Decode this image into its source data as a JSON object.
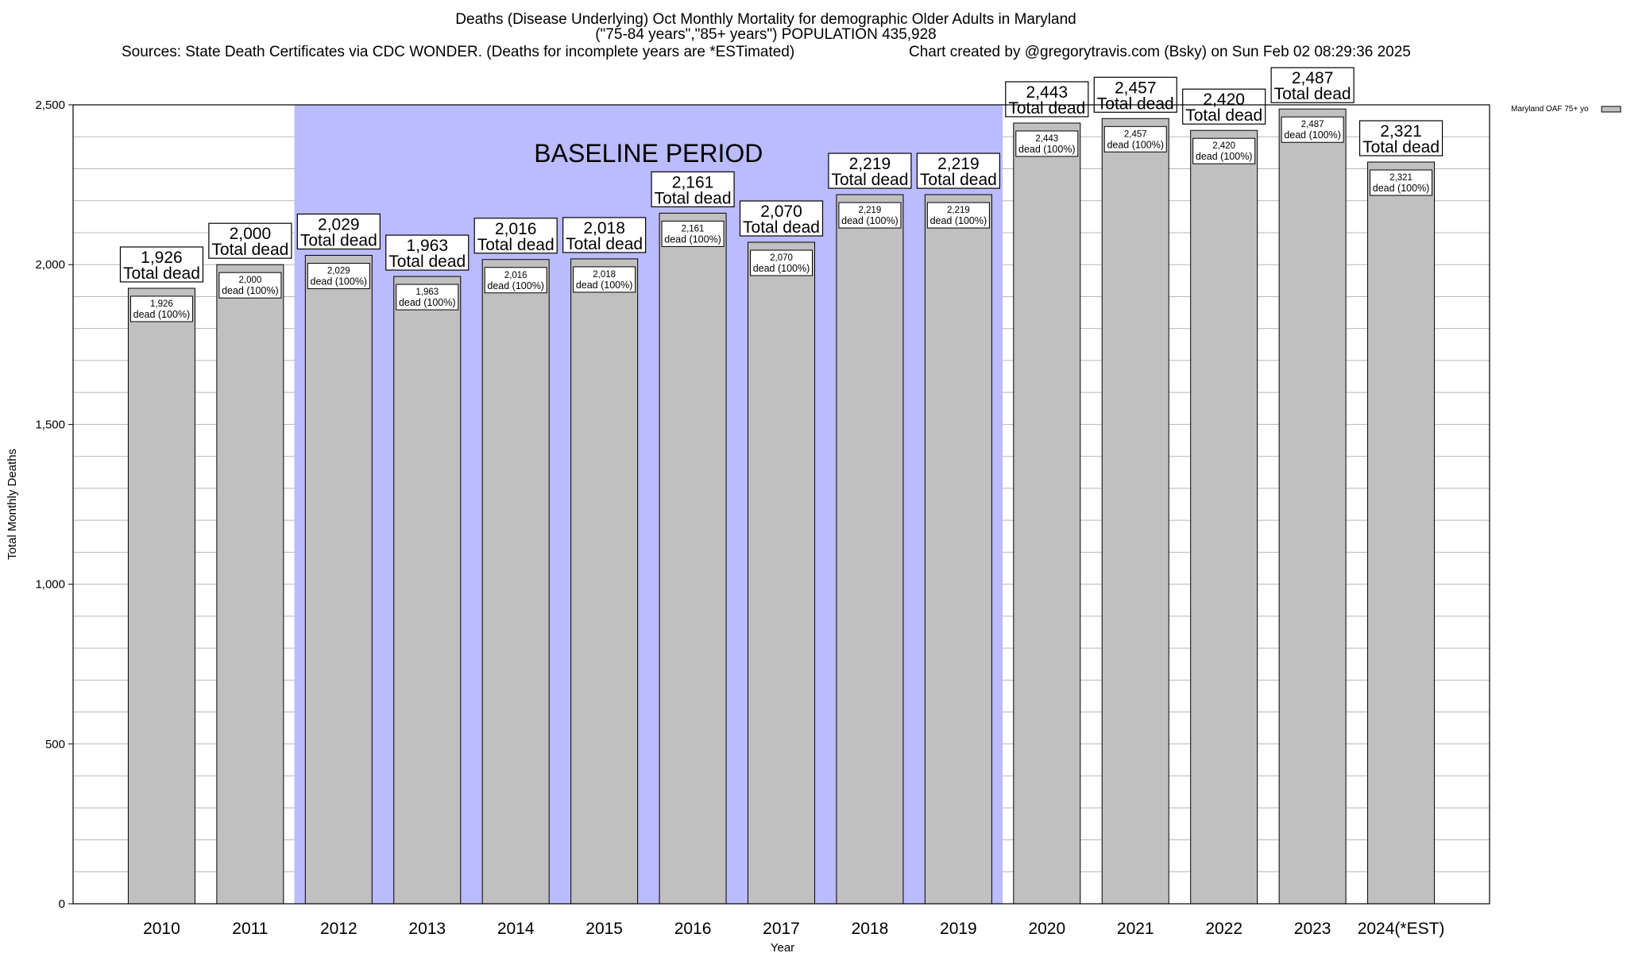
{
  "header": {
    "title_line1": "Deaths (Disease Underlying) Oct Monthly Mortality for demographic Older Adults in Maryland",
    "title_line2": "(\"75-84 years\",\"85+ years\") POPULATION 435,928",
    "sources": "Sources: State Death Certificates via CDC WONDER. (Deaths for incomplete years are *ESTimated)",
    "credit": "Chart created by @gregorytravis.com (Bsky) on Sun Feb 02 08:29:36 2025"
  },
  "chart_data": {
    "type": "bar",
    "xlabel": "Year",
    "ylabel": "Total Monthly Deaths",
    "ylim": [
      0,
      2500
    ],
    "yticks": [
      0,
      500,
      1000,
      1500,
      2000,
      2500
    ],
    "ytick_labels": [
      "0",
      "500",
      "1,000",
      "1,500",
      "2,000",
      "2,500"
    ],
    "minor_grid_step": 100,
    "grid": true,
    "legend": {
      "label": "Maryland OAF 75+ yo",
      "placement": "top-right outside plot"
    },
    "baseline_band": {
      "label": "BASELINE PERIOD",
      "from": "2012",
      "to": "2019",
      "color": "#bbbbff"
    },
    "categories": [
      "2010",
      "2011",
      "2012",
      "2013",
      "2014",
      "2015",
      "2016",
      "2017",
      "2018",
      "2019",
      "2020",
      "2021",
      "2022",
      "2023",
      "2024(*EST)"
    ],
    "series": [
      {
        "name": "Maryland OAF 75+ yo",
        "color": "#c0c0c0",
        "values": [
          1926,
          2000,
          2029,
          1963,
          2016,
          2018,
          2161,
          2070,
          2219,
          2219,
          2443,
          2457,
          2420,
          2487,
          2321
        ],
        "value_labels": [
          "1,926",
          "2,000",
          "2,029",
          "1,963",
          "2,016",
          "2,018",
          "2,161",
          "2,070",
          "2,219",
          "2,219",
          "2,443",
          "2,457",
          "2,420",
          "2,487",
          "2,321"
        ],
        "inner_labels": [
          "dead (100%)",
          "dead (100%)",
          "dead (100%)",
          "dead (100%)",
          "dead (100%)",
          "dead (100%)",
          "dead (100%)",
          "dead (100%)",
          "dead (100%)",
          "dead (100%)",
          "dead (100%)",
          "dead (100%)",
          "dead (100%)",
          "dead (100%)",
          "dead (100%)"
        ],
        "top_label_suffix": "Total dead"
      }
    ]
  }
}
